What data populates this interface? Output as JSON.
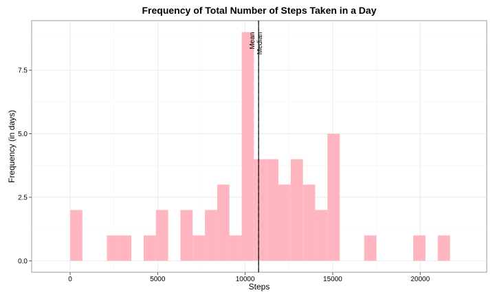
{
  "chart_data": {
    "type": "bar",
    "title": "Frequency of Total Number of Steps Taken in a Day",
    "xlabel": "Steps",
    "ylabel": "Frequency (in days)",
    "xlim": [
      -2200,
      23800
    ],
    "ylim": [
      -0.45,
      9.45
    ],
    "bin_width": 700,
    "bins": [
      {
        "start": 0,
        "end": 700,
        "count": 2
      },
      {
        "start": 2100,
        "end": 2800,
        "count": 1
      },
      {
        "start": 2800,
        "end": 3500,
        "count": 1
      },
      {
        "start": 4200,
        "end": 4900,
        "count": 1
      },
      {
        "start": 4900,
        "end": 5600,
        "count": 2
      },
      {
        "start": 6300,
        "end": 7000,
        "count": 2
      },
      {
        "start": 7000,
        "end": 7700,
        "count": 1
      },
      {
        "start": 7700,
        "end": 8400,
        "count": 2
      },
      {
        "start": 8400,
        "end": 9100,
        "count": 3
      },
      {
        "start": 9100,
        "end": 9800,
        "count": 1
      },
      {
        "start": 9800,
        "end": 10500,
        "count": 9
      },
      {
        "start": 10500,
        "end": 11200,
        "count": 4
      },
      {
        "start": 11200,
        "end": 11900,
        "count": 4
      },
      {
        "start": 11900,
        "end": 12600,
        "count": 3
      },
      {
        "start": 12600,
        "end": 13300,
        "count": 4
      },
      {
        "start": 13300,
        "end": 14000,
        "count": 3
      },
      {
        "start": 14000,
        "end": 14700,
        "count": 2
      },
      {
        "start": 14700,
        "end": 15400,
        "count": 5
      },
      {
        "start": 16800,
        "end": 17500,
        "count": 1
      },
      {
        "start": 19600,
        "end": 20300,
        "count": 1
      },
      {
        "start": 21000,
        "end": 21700,
        "count": 1
      }
    ],
    "x_ticks": [
      {
        "value": 0,
        "label": "0"
      },
      {
        "value": 5000,
        "label": "5000"
      },
      {
        "value": 10000,
        "label": "10000"
      },
      {
        "value": 15000,
        "label": "15000"
      },
      {
        "value": 20000,
        "label": "20000"
      }
    ],
    "y_ticks": [
      {
        "value": 0,
        "label": "0.0"
      },
      {
        "value": 2.5,
        "label": "2.5"
      },
      {
        "value": 5,
        "label": "5.0"
      },
      {
        "value": 7.5,
        "label": "7.5"
      }
    ],
    "vlines": [
      {
        "value": 10766,
        "label": "Mean",
        "style": "solid"
      },
      {
        "value": 10765,
        "label": "Median",
        "style": "dashed"
      }
    ],
    "grid": true,
    "bar_color": "#FFB6C1",
    "grid_color": "#E5E5E5",
    "minor_grid_color": "#F4F4F4",
    "line_color": "#000000"
  }
}
